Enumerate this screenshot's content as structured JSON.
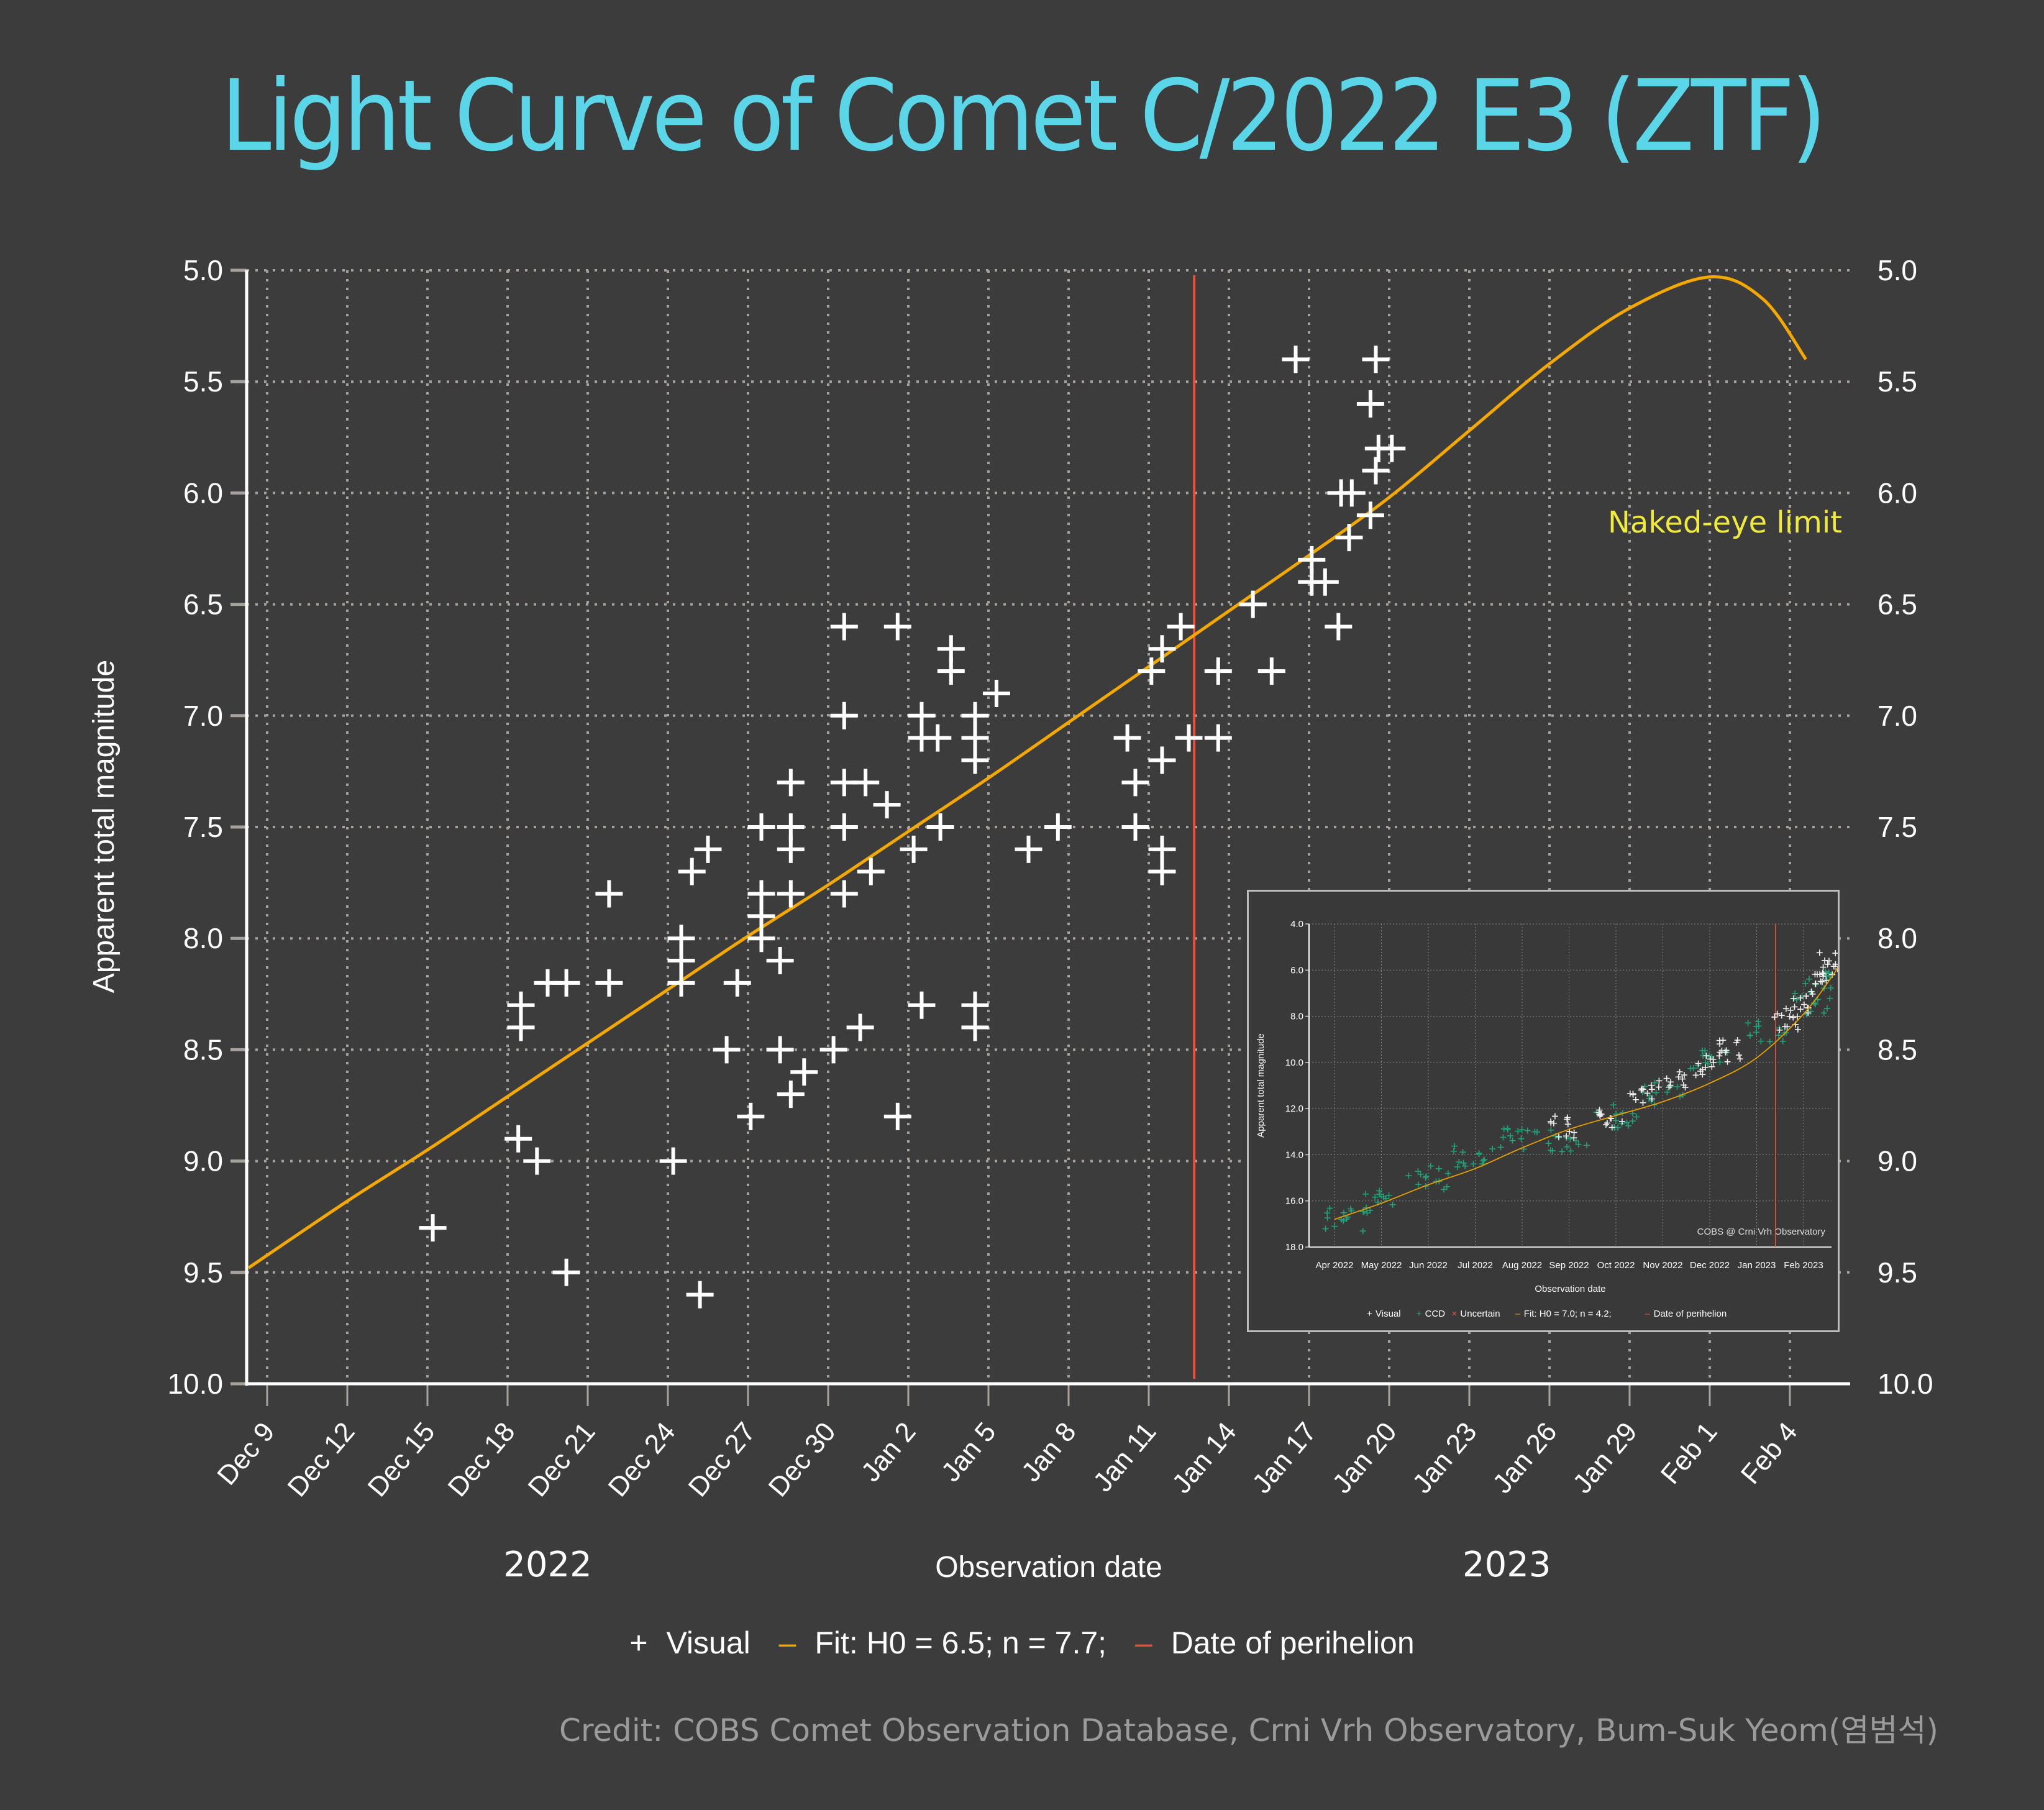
{
  "title": "Light Curve of Comet C/2022 E3 (ZTF)",
  "naked_eye_label": "Naked-eye limit",
  "legend": {
    "visual": "Visual",
    "fit": "Fit: H0 = 6.5; n = 7.7;",
    "perihelion": "Date of perihelion"
  },
  "credit": "Credit: COBS Comet Observation Database, Crni Vrh Observatory, Bum-Suk Yeom(염범석)",
  "colors": {
    "background": "#3c3c3c",
    "title": "#5ad6e8",
    "fit": "#f5a800",
    "perihelion": "#e8503a",
    "naked_eye": "#f0ea3a",
    "points": "#ffffff"
  },
  "chart_data": [
    {
      "type": "scatter",
      "title": "Light Curve of Comet C/2022 E3 (ZTF)",
      "xlabel": "Observation date",
      "ylabel": "Apparent total magnitude",
      "x_unit": "days since 2022-12-09",
      "xlim": [
        -0.7,
        57.6
      ],
      "ylim": [
        10.0,
        5.0
      ],
      "y_inverted": true,
      "grid": true,
      "x_ticks": [
        {
          "day": 0,
          "label": "Dec 9"
        },
        {
          "day": 3,
          "label": "Dec 12"
        },
        {
          "day": 6,
          "label": "Dec 15"
        },
        {
          "day": 9,
          "label": "Dec 18"
        },
        {
          "day": 12,
          "label": "Dec 21"
        },
        {
          "day": 15,
          "label": "Dec 24"
        },
        {
          "day": 18,
          "label": "Dec 27"
        },
        {
          "day": 21,
          "label": "Dec 30"
        },
        {
          "day": 24,
          "label": "Jan 2"
        },
        {
          "day": 27,
          "label": "Jan 5"
        },
        {
          "day": 30,
          "label": "Jan 8"
        },
        {
          "day": 33,
          "label": "Jan 11"
        },
        {
          "day": 36,
          "label": "Jan 14"
        },
        {
          "day": 39,
          "label": "Jan 17"
        },
        {
          "day": 42,
          "label": "Jan 20"
        },
        {
          "day": 45,
          "label": "Jan 23"
        },
        {
          "day": 48,
          "label": "Jan 26"
        },
        {
          "day": 51,
          "label": "Jan 29"
        },
        {
          "day": 54,
          "label": "Feb 1"
        },
        {
          "day": 57,
          "label": "Feb 4"
        }
      ],
      "y_ticks": [
        "5.0",
        "5.5",
        "6.0",
        "6.5",
        "7.0",
        "7.5",
        "8.0",
        "8.5",
        "9.0",
        "9.5",
        "10.0"
      ],
      "year_labels": [
        {
          "day": 10.5,
          "label": "2022"
        },
        {
          "day": 46.4,
          "label": "2023"
        }
      ],
      "naked_eye_limit_mag": 6.0,
      "perihelion_day": 34.7,
      "series": [
        {
          "name": "Visual",
          "marker": "+",
          "points": [
            [
              6.2,
              9.3
            ],
            [
              9.5,
              8.3
            ],
            [
              9.5,
              8.4
            ],
            [
              9.4,
              8.9
            ],
            [
              10.1,
              9.0
            ],
            [
              10.5,
              8.2
            ],
            [
              11.2,
              8.2
            ],
            [
              11.2,
              9.5
            ],
            [
              12.8,
              7.8
            ],
            [
              12.8,
              8.2
            ],
            [
              15.2,
              9.0
            ],
            [
              15.5,
              8.0
            ],
            [
              15.5,
              8.1
            ],
            [
              15.5,
              8.2
            ],
            [
              15.9,
              7.7
            ],
            [
              16.2,
              9.6
            ],
            [
              16.5,
              7.6
            ],
            [
              17.2,
              8.5
            ],
            [
              17.6,
              8.2
            ],
            [
              18.1,
              8.8
            ],
            [
              18.5,
              7.5
            ],
            [
              18.5,
              7.8
            ],
            [
              18.5,
              7.9
            ],
            [
              18.5,
              8.0
            ],
            [
              19.2,
              8.1
            ],
            [
              19.2,
              8.5
            ],
            [
              19.6,
              7.3
            ],
            [
              19.6,
              7.5
            ],
            [
              19.6,
              7.6
            ],
            [
              19.6,
              7.8
            ],
            [
              19.6,
              8.7
            ],
            [
              20.1,
              8.6
            ],
            [
              21.2,
              8.5
            ],
            [
              21.6,
              6.6
            ],
            [
              21.6,
              7.0
            ],
            [
              21.6,
              7.3
            ],
            [
              21.6,
              7.5
            ],
            [
              21.6,
              7.8
            ],
            [
              22.2,
              8.4
            ],
            [
              22.4,
              7.3
            ],
            [
              22.6,
              7.7
            ],
            [
              23.2,
              7.4
            ],
            [
              23.6,
              6.6
            ],
            [
              23.6,
              8.8
            ],
            [
              24.2,
              7.6
            ],
            [
              24.5,
              7.0
            ],
            [
              24.5,
              7.1
            ],
            [
              24.5,
              8.3
            ],
            [
              25.1,
              7.1
            ],
            [
              25.2,
              7.5
            ],
            [
              25.6,
              6.7
            ],
            [
              25.6,
              6.8
            ],
            [
              26.5,
              7.0
            ],
            [
              26.5,
              7.1
            ],
            [
              26.5,
              7.2
            ],
            [
              26.5,
              8.3
            ],
            [
              26.5,
              8.4
            ],
            [
              27.3,
              6.9
            ],
            [
              28.5,
              7.6
            ],
            [
              29.6,
              7.5
            ],
            [
              32.2,
              7.1
            ],
            [
              32.5,
              7.3
            ],
            [
              32.5,
              7.5
            ],
            [
              33.1,
              6.8
            ],
            [
              33.5,
              6.7
            ],
            [
              33.5,
              7.2
            ],
            [
              33.5,
              7.6
            ],
            [
              33.5,
              7.7
            ],
            [
              34.2,
              6.6
            ],
            [
              34.5,
              7.1
            ],
            [
              35.6,
              6.8
            ],
            [
              35.6,
              7.1
            ],
            [
              36.9,
              6.5
            ],
            [
              37.6,
              6.8
            ],
            [
              38.5,
              5.4
            ],
            [
              39.1,
              6.3
            ],
            [
              39.1,
              6.4
            ],
            [
              39.6,
              6.4
            ],
            [
              40.1,
              6.6
            ],
            [
              40.2,
              6.0
            ],
            [
              40.6,
              6.0
            ],
            [
              40.5,
              6.2
            ],
            [
              41.3,
              6.1
            ],
            [
              41.3,
              5.6
            ],
            [
              41.5,
              5.4
            ],
            [
              41.5,
              5.9
            ],
            [
              41.6,
              5.8
            ],
            [
              42.1,
              5.8
            ]
          ]
        },
        {
          "name": "Fit: H0 = 6.5; n = 7.7;",
          "type": "line",
          "points": [
            [
              -0.7,
              9.48
            ],
            [
              3,
              9.18
            ],
            [
              6,
              8.95
            ],
            [
              9,
              8.71
            ],
            [
              12,
              8.47
            ],
            [
              15,
              8.23
            ],
            [
              18,
              7.99
            ],
            [
              21,
              7.76
            ],
            [
              24,
              7.52
            ],
            [
              27,
              7.28
            ],
            [
              30,
              7.03
            ],
            [
              33,
              6.78
            ],
            [
              36,
              6.53
            ],
            [
              39,
              6.28
            ],
            [
              42,
              6.02
            ],
            [
              45,
              5.72
            ],
            [
              48,
              5.42
            ],
            [
              51,
              5.17
            ],
            [
              54,
              5.03
            ],
            [
              56,
              5.13
            ],
            [
              57.6,
              5.4
            ]
          ]
        }
      ]
    },
    {
      "type": "scatter",
      "title": "Inset: COBS @ Crni Vrh Observatory",
      "annotation": "COBS @ Crni Vrh Observatory",
      "xlabel": "Observation date",
      "ylabel": "Apparent total magnitude",
      "ylim": [
        18.0,
        4.0
      ],
      "y_ticks": [
        "4.0",
        "6.0",
        "8.0",
        "10.0",
        "12.0",
        "14.0",
        "16.0",
        "18.0"
      ],
      "x_ticks": [
        "Apr 2022",
        "May 2022",
        "Jun 2022",
        "Jul 2022",
        "Aug 2022",
        "Sep 2022",
        "Oct 2022",
        "Nov 2022",
        "Dec 2022",
        "Jan 2023",
        "Feb 2023"
      ],
      "legend": [
        "Visual",
        "CCD",
        "Uncertain",
        "Fit: H0 = 7.0; n = 4.2;",
        "Date of perihelion"
      ],
      "fit_curve": [
        [
          0,
          16.8
        ],
        [
          1,
          16.1
        ],
        [
          2,
          15.3
        ],
        [
          3,
          14.6
        ],
        [
          4,
          13.7
        ],
        [
          5,
          12.9
        ],
        [
          6,
          12.3
        ],
        [
          7,
          11.7
        ],
        [
          8,
          10.9
        ],
        [
          9,
          9.8
        ],
        [
          10,
          7.9
        ],
        [
          10.7,
          6.0
        ],
        [
          11,
          5.0
        ],
        [
          11.8,
          7.8
        ]
      ],
      "visual_clusters": [
        [
          4.9,
          12.8
        ],
        [
          5.9,
          12.4
        ],
        [
          6.6,
          11.4
        ],
        [
          7.2,
          10.8
        ],
        [
          8.0,
          10.1
        ],
        [
          8.5,
          9.5
        ],
        [
          9.6,
          8.2
        ],
        [
          9.9,
          7.4
        ],
        [
          10.5,
          6.5
        ],
        [
          10.6,
          5.6
        ]
      ],
      "ccd_clusters": [
        [
          0.2,
          16.8
        ],
        [
          1.0,
          16.0
        ],
        [
          2.0,
          15.0
        ],
        [
          3.0,
          14.0
        ],
        [
          4.0,
          13.4
        ],
        [
          5.0,
          13.4
        ],
        [
          6.0,
          12.3
        ],
        [
          7.0,
          11.4
        ],
        [
          8.0,
          10.0
        ],
        [
          9.2,
          8.6
        ],
        [
          10.2,
          7.4
        ],
        [
          10.5,
          6.6
        ]
      ]
    }
  ]
}
